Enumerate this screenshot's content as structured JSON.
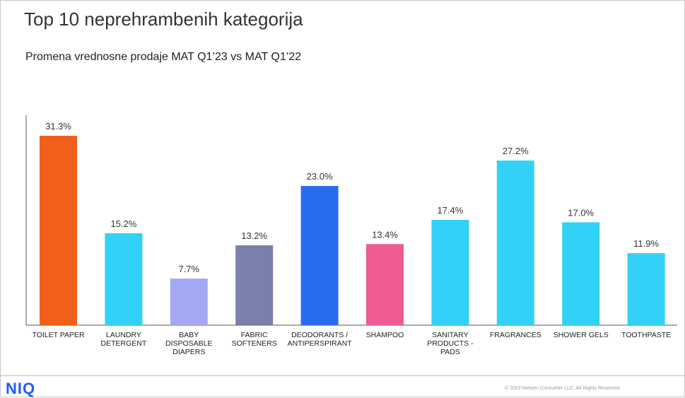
{
  "page": {
    "title": "Top 10 neprehrambenih kategorija",
    "subtitle": "Promena vrednosne prodaje MAT Q1’23 vs MAT Q1’22",
    "logo": "NIQ",
    "copyright": "© 2023 Nielsen Consumer LLC. All Rights Reserved."
  },
  "chart_data": {
    "type": "bar",
    "categories": [
      [
        "TOILET PAPER"
      ],
      [
        "LAUNDRY",
        "DETERGENT"
      ],
      [
        "BABY",
        "DISPOSABLE",
        "DIAPERS"
      ],
      [
        "FABRIC",
        "SOFTENERS"
      ],
      [
        "DEODORANTS /",
        "ANTIPERSPIRANT"
      ],
      [
        "SHAMPOO"
      ],
      [
        "SANITARY",
        "PRODUCTS -",
        "PADS"
      ],
      [
        "FRAGRANCES"
      ],
      [
        "SHOWER GELS"
      ],
      [
        "TOOTHPASTE"
      ]
    ],
    "values": [
      31.3,
      15.2,
      7.7,
      13.2,
      23.0,
      13.4,
      17.4,
      27.2,
      17.0,
      11.9
    ],
    "data_labels": [
      "31.3%",
      "15.2%",
      "7.7%",
      "13.2%",
      "23.0%",
      "13.4%",
      "17.4%",
      "27.2%",
      "17.0%",
      "11.9%"
    ],
    "colors": [
      "#f0601a",
      "#33d1f7",
      "#a4a8f4",
      "#7a7fab",
      "#2a6cf0",
      "#f05a92",
      "#33d1f7",
      "#33d1f7",
      "#33d1f7",
      "#33d1f7"
    ],
    "ylim": [
      0,
      35
    ],
    "grid": false,
    "legend": "none"
  }
}
